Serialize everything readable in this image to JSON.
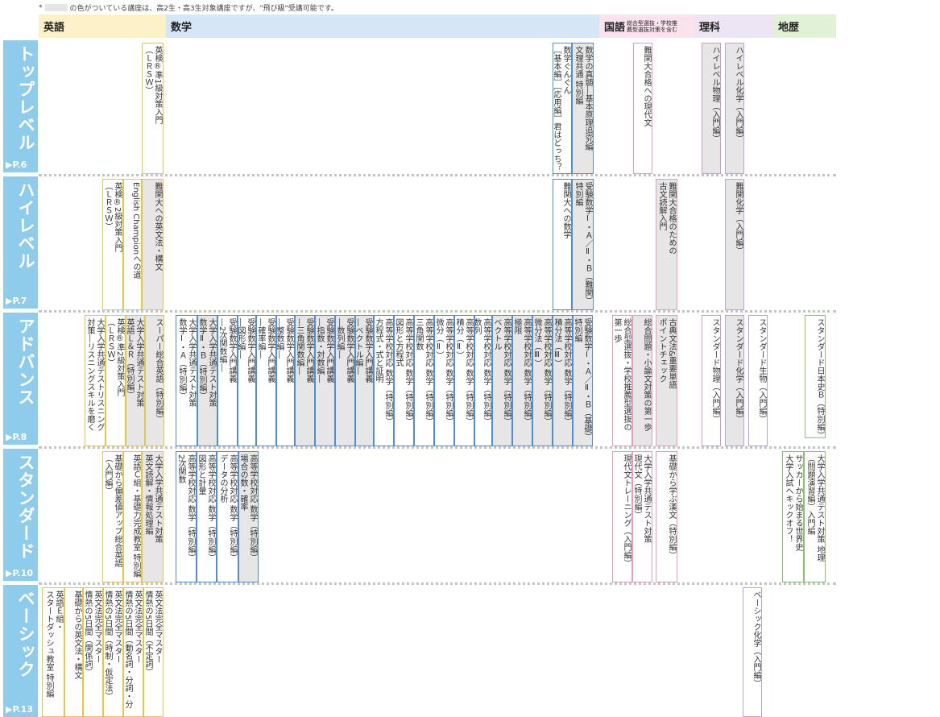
{
  "note": {
    "prefix": "*",
    "text": "の色がついている講座は、高2生・高3生対象講座ですが、\"飛び級\"受講可能です。"
  },
  "subjects": {
    "english": "英語",
    "math": "数学",
    "japanese": "国語",
    "japanese_note": "総合型選抜・学校推\n薦型選抜対策を含む",
    "science": "理科",
    "geo_history": "地歴"
  },
  "colors": {
    "english_header": "#fdf2c7",
    "math_header": "#d5e6f7",
    "japanese_header": "#fbe3ee",
    "science_header": "#ede4f4",
    "history_header": "#e1f1d6",
    "level_band": "#8fcbea",
    "gray_course": "#e6e6e6"
  },
  "levels": [
    {
      "name": "トップレベル",
      "page": "▶P.6"
    },
    {
      "name": "ハイレベル",
      "page": "▶P.7"
    },
    {
      "name": "アドバンス",
      "page": "▶P.8"
    },
    {
      "name": "スタンダード",
      "page": "▶P.10"
    },
    {
      "name": "ベーシック",
      "page": "▶P.13"
    }
  ],
  "courses": {
    "top": {
      "en1": "英検®準1級対策入門\n（ＬＲＳＷ）",
      "ma1": "数学の真髄―基本原理追究編\n文理共通 特別編",
      "ma2": "数学ぐんぐん\n［基本編］［応用編］君はどっち？",
      "ja1": "難関大合格への現代文",
      "sc1": "ハイレベル物理（入門編）",
      "sc2": "ハイレベル化学（入門編）"
    },
    "high": {
      "en1": "難関大への英文法・構文",
      "en2": "English Championへの道",
      "en3": "英検®2級対策入門\n（ＬＲＳＷ）",
      "ma1": "受験数学Ⅰ・Ａ／Ⅱ・Ｂ（難関）\n特別編",
      "ma2": "難関大への数学",
      "ja1": "難関大合格のための\n古文読解入門",
      "sc1": "難関化学（入門編）"
    },
    "adv": {
      "en1": "スーパー総合英語（特別編）",
      "en2": "大学入学共通テスト対策\n英語Ｌ＆Ｒ（特別編）",
      "en3": "英検®準2級対策入門\n（ＬＲＳＷ）",
      "en4": "大学入学共通テストリスニング\n対策―リスニングスキルを磨く",
      "ma1": "受験数学Ⅰ・Ａ／Ⅱ・Ｂ（基礎）\n特別編",
      "ma2": "高等学校対応 数学（特別編）\n積分法（Ⅲ）",
      "ma3": "高等学校対応 数学（特別編）\n微分法（Ⅲ）",
      "ma4": "高等学校対応 数学（特別編）\n極限",
      "ma5": "高等学校対応 数学（特別編）\nベクトル",
      "ma6": "高等学校対応 数学（特別編）\n数列",
      "ma7": "高等学校対応 数学（特別編）\n積分（Ⅱ）",
      "ma8": "高等学校対応 数学（特別編）\n微分（Ⅱ）",
      "ma9": "高等学校対応 数学（特別編）\n三角関数",
      "ma10": "高等学校対応 数学（特別編）\n図形と方程式",
      "ma11": "高等学校対応 数学（特別編）\n方程式・式と証明",
      "ma12": "受験数学入門講義\n―ベクトル編―",
      "ma13": "受験数学入門講義\n―数列編―",
      "ma14": "受験数学入門講義\n―指数・対数編―",
      "ma15": "受験数学入門講義\n―三角関数編―",
      "ma16": "受験数学入門講義\n―整数編―",
      "ma17": "受験数学入門講義\n―確率編―",
      "ma18": "受験数学入門講義\n―図形編―",
      "ma19": "受験数学入門講義\n―2次関数編―",
      "ma20": "大学入学共通テスト対策\n数学Ⅱ・Ｂ（特別編）",
      "ma21": "大学入学共通テスト対策\n数学Ⅰ・Ａ（特別編）",
      "ja1": "総合問題・小論文対策の第一歩",
      "ja2": "総合型選抜・学校推薦型選抜の\n第一歩",
      "ja3": "古典文法&重要単語\nポイントチェック",
      "sc1": "スタンダード物理（入門編）",
      "sc2": "スタンダード化学（入門編）",
      "sc3": "スタンダード生物（入門編）",
      "hi1": "スタンダード日本史Ｂ（特別編）"
    },
    "std": {
      "en1": "大学入学共通テスト対策\n英文読解・情報処理編",
      "en2": "英語Ｃ組・基礎力完成教室 特別編",
      "en3": "基礎から偏差値アップ総合英語\n（入門編）",
      "ma1": "高等学校対応 数学（特別編）\n場合の数・確率",
      "ma2": "高等学校対応 数学（特別編）\nデータの分析",
      "ma3": "高等学校対応 数学（特別編）\n図形と計量",
      "ma4": "高等学校対応 数学（特別編）\n2次関数",
      "ja1": "大学入学共通テスト対策\n現代文（特別編）",
      "ja2": "現代文トレーニング（入門編）",
      "ja3": "基礎から学ぶ漢文（特別編）",
      "hi1": "大学入学共通テスト対策 地理\n（問題演習編）入門編",
      "hi2": "サッカーから始まる世界史\n大学入試へキックオフ！"
    },
    "basic": {
      "en1": "英文法完全マスター\n情熱の5日間（不定詞）",
      "en2": "英文法完全マスター\n情熱の5日間（動名詞・分詞・分詞構文）",
      "en3": "英文法完全マスター\n情熱の5日間（時制・仮定法）",
      "en4": "英文法完全マスター\n情熱の5日間（関係詞）",
      "en5": "基礎からの英文法・構文",
      "en6": "英語Ｅ組・\nスタートダッシュ教室 特別編",
      "sc1": "ベーシック化学（入門編）"
    }
  }
}
